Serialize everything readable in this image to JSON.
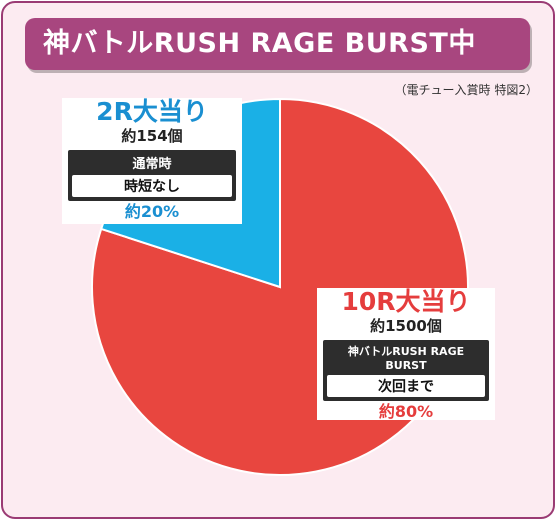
{
  "title": "神バトルRUSH RAGE BURST中",
  "note": "（電チュー入賞時 特図2）",
  "colors": {
    "frame": "#9a3b74",
    "title_bg": "#a8467f",
    "bg": "#fcebf1",
    "red": "#e8463f",
    "blue": "#1ab0e6"
  },
  "chart_data": {
    "type": "pie",
    "title": "神バトルRUSH RAGE BURST中",
    "slices": [
      {
        "label": "10R大当り",
        "count": "約1500個",
        "after": "神バトルRUSH RAGE BURST",
        "after_detail": "次回まで",
        "value": 80,
        "value_label": "約80%",
        "color": "#e8463f"
      },
      {
        "label": "2R大当り",
        "count": "約154個",
        "after": "通常時",
        "after_detail": "時短なし",
        "value": 20,
        "value_label": "約20%",
        "color": "#1ab0e6"
      }
    ]
  }
}
